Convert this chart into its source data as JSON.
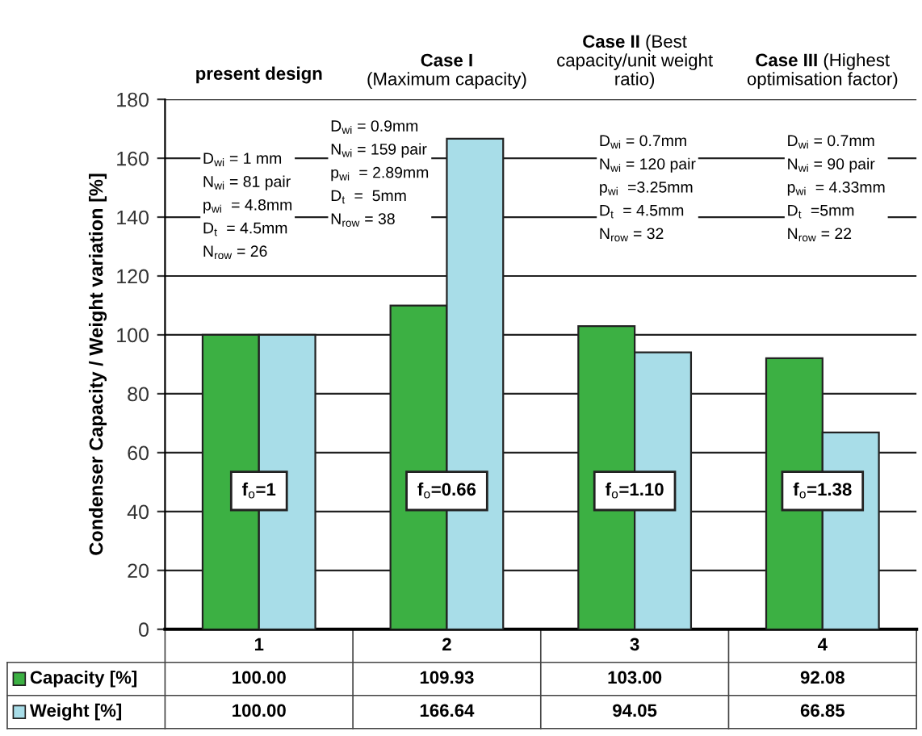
{
  "chart_data": {
    "type": "bar",
    "ylabel": "Condenser Capacity / Weight variation [%]",
    "categories": [
      "1",
      "2",
      "3",
      "4"
    ],
    "series": [
      {
        "name": "Capacity [%]",
        "color": "#3cb043",
        "values": [
          100.0,
          109.93,
          103.0,
          92.08
        ],
        "value_labels": [
          "100.00",
          "109.93",
          "103.00",
          "92.08"
        ]
      },
      {
        "name": "Weight [%]",
        "color": "#a8dde8",
        "values": [
          100.0,
          166.64,
          94.05,
          66.85
        ],
        "value_labels": [
          "100.00",
          "166.64",
          "94.05",
          "66.85"
        ]
      }
    ],
    "ylim": [
      0,
      180
    ],
    "yticks": [
      0,
      20,
      40,
      60,
      80,
      100,
      120,
      140,
      160,
      180
    ],
    "grid": "y",
    "legend": "bottom left",
    "annotations": [
      "present design",
      "Case I\n(Maximum capacity)",
      "Case II (Best\ncapacity/unit weight\nratio)",
      "Case III (Highest\noptimisation factor)",
      "D$_{wi}$ = 1 mm\nN$_{wi}$ = 81 pair\np$_{wi}$  = 4.8mm\nD$_{t}$  = 4.5mm\nN$_{row}$ = 26",
      "D$_{wi}$ = 0.9mm\nN$_{wi}$ = 159 pair\np$_{wi}$  = 2.89mm\nD$_{t}$  =  5mm\nN$_{row}$ = 38",
      "D$_{wi}$ = 0.7mm\nN$_{wi}$ = 120 pair\np$_{wi}$  =3.25mm\nD$_{t}$  = 4.5mm\nN$_{row}$ = 32",
      "D$_{wi}$ = 0.7mm\nN$_{wi}$ = 90 pair\np$_{wi}$  = 4.33mm\nD$_{t}$  =5mm\nN$_{row}$ = 22",
      "f$_{o}$=1",
      "f$_{o}$=0.66",
      "f$_{o}$=1.10",
      "f$_{o}$=1.38"
    ]
  }
}
